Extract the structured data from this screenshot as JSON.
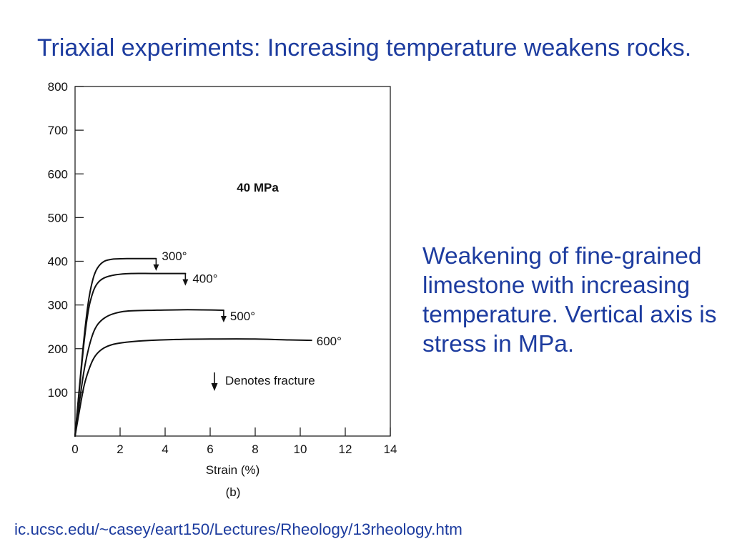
{
  "slide": {
    "title": "Triaxial experiments: Increasing temperature weakens rocks.",
    "caption": "Weakening of fine-grained limestone with increasing temperature. Vertical axis is stress in MPa.",
    "source_url": "ic.ucsc.edu/~casey/eart150/Lectures/Rheology/13rheology.htm",
    "text_color": "#1d3c9f",
    "background": "#ffffff"
  },
  "chart_data": {
    "type": "line",
    "panel_label": "(b)",
    "xlabel": "Strain (%)",
    "xlim": [
      0,
      14
    ],
    "ylim": [
      0,
      800
    ],
    "x_ticks": [
      0,
      2,
      4,
      6,
      8,
      10,
      12,
      14
    ],
    "y_ticks": [
      100,
      200,
      300,
      400,
      500,
      600,
      700,
      800
    ],
    "grid": false,
    "line_color": "#111111",
    "annotations": [
      {
        "text": "40 MPa"
      }
    ],
    "legend_position": "lower-center",
    "legend": [
      {
        "marker": "down-arrow-icon",
        "label": "Denotes fracture"
      }
    ],
    "series": [
      {
        "name": "300°",
        "fracture": true,
        "x": [
          0,
          0.2,
          0.4,
          0.6,
          0.8,
          1.0,
          1.3,
          1.7,
          2.3,
          3.0,
          3.6
        ],
        "y": [
          0,
          115,
          225,
          310,
          360,
          385,
          400,
          405,
          406,
          406,
          406
        ]
      },
      {
        "name": "400°",
        "fracture": true,
        "x": [
          0,
          0.2,
          0.4,
          0.6,
          0.8,
          1.0,
          1.3,
          1.8,
          2.5,
          3.5,
          4.9
        ],
        "y": [
          0,
          110,
          215,
          290,
          330,
          350,
          362,
          369,
          372,
          372,
          372
        ]
      },
      {
        "name": "500°",
        "fracture": true,
        "x": [
          0,
          0.2,
          0.4,
          0.6,
          0.8,
          1.0,
          1.3,
          1.7,
          2.3,
          3.5,
          5.0,
          6.6
        ],
        "y": [
          0,
          80,
          150,
          200,
          235,
          255,
          270,
          280,
          286,
          288,
          289,
          288
        ]
      },
      {
        "name": "600°",
        "fracture": false,
        "x": [
          0,
          0.2,
          0.4,
          0.6,
          0.8,
          1.0,
          1.3,
          1.7,
          2.3,
          3.0,
          4.5,
          6.0,
          8.0,
          9.5,
          10.5
        ],
        "y": [
          0,
          60,
          115,
          150,
          175,
          190,
          202,
          210,
          215,
          218,
          221,
          222,
          222,
          220,
          219
        ]
      }
    ]
  }
}
